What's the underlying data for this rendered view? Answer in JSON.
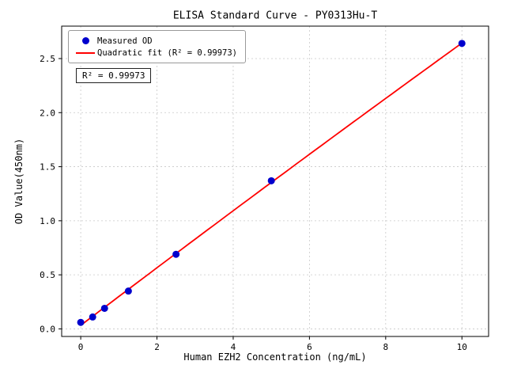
{
  "chart_data": {
    "type": "scatter",
    "title": "ELISA Standard Curve - PY0313Hu-T",
    "xlabel": "Human EZH2 Concentration (ng/mL)",
    "ylabel": "OD Value(450nm)",
    "xlim": [
      -0.5,
      10.7
    ],
    "ylim": [
      -0.07,
      2.8
    ],
    "xticks": [
      0,
      2,
      4,
      6,
      8,
      10
    ],
    "xtick_labels": [
      "0",
      "2",
      "4",
      "6",
      "8",
      "10"
    ],
    "yticks": [
      0.0,
      0.5,
      1.0,
      1.5,
      2.0,
      2.5
    ],
    "ytick_labels": [
      "0.0",
      "0.5",
      "1.0",
      "1.5",
      "2.0",
      "2.5"
    ],
    "grid": true,
    "legend_position": "upper-left",
    "series": [
      {
        "name": "Measured OD",
        "type": "scatter",
        "color": "#0000cd",
        "x": [
          0,
          0.313,
          0.625,
          1.25,
          2.5,
          5,
          10
        ],
        "y": [
          0.06,
          0.11,
          0.19,
          0.35,
          0.69,
          1.37,
          2.64
        ]
      },
      {
        "name": "Quadratic fit (R² = 0.99973)",
        "type": "line",
        "fit": "quadratic",
        "color": "#ff0000"
      }
    ],
    "annotation": "R² = 0.99973"
  }
}
